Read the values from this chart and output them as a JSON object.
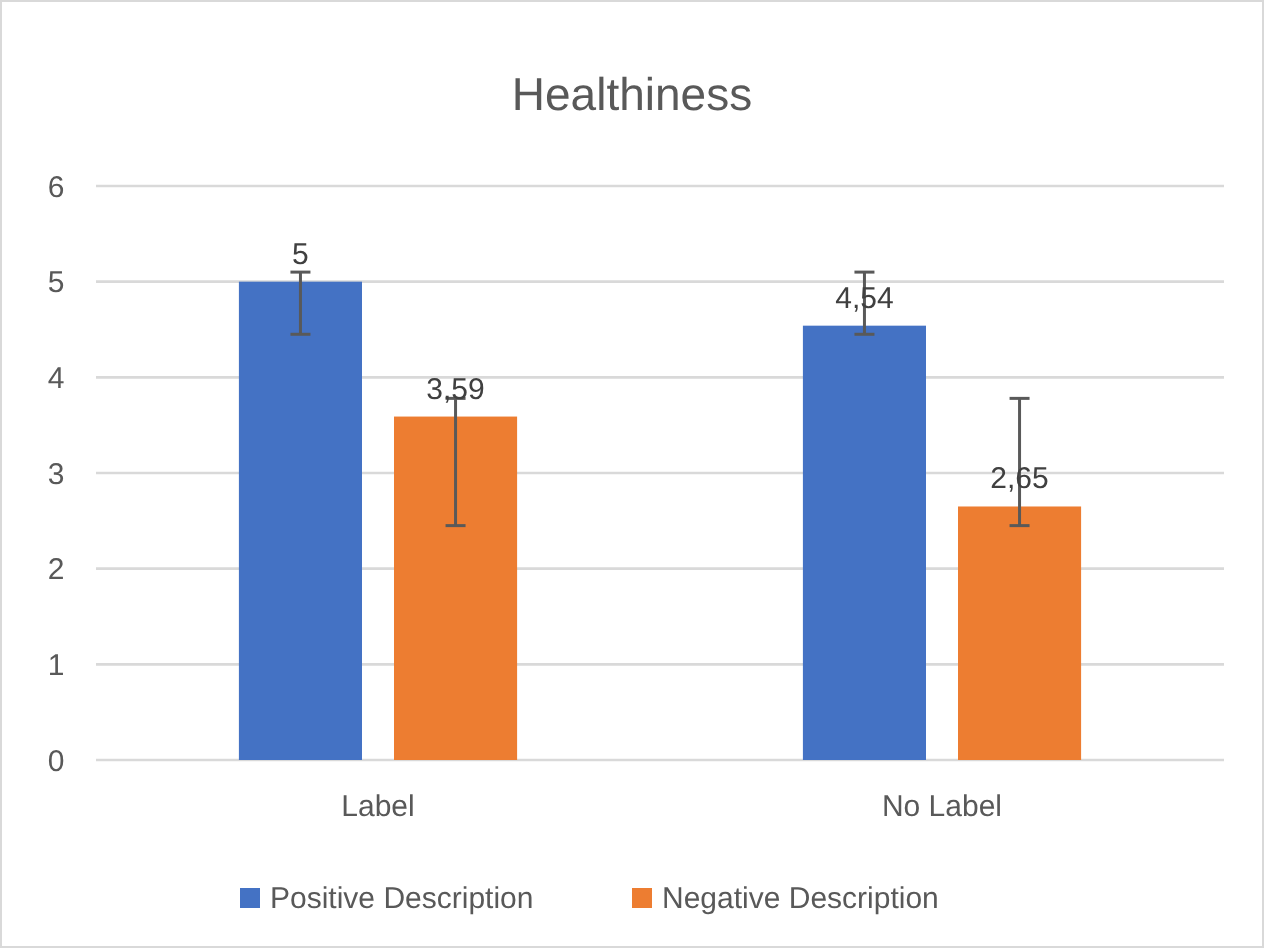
{
  "chart_data": {
    "type": "bar",
    "title": "Healthiness",
    "categories": [
      "Label",
      "No Label"
    ],
    "series": [
      {
        "name": "Positive Description",
        "color": "#4472c4",
        "values": [
          5,
          4.54
        ],
        "value_labels": [
          "5",
          "4,54"
        ],
        "errors": [
          [
            4.45,
            5.1
          ],
          [
            4.45,
            5.1
          ]
        ]
      },
      {
        "name": "Negative Description",
        "color": "#ed7d31",
        "values": [
          3.59,
          2.65
        ],
        "value_labels": [
          "3,59",
          "2,65"
        ],
        "errors": [
          [
            2.45,
            3.78
          ],
          [
            2.45,
            3.78
          ]
        ]
      }
    ],
    "ylim": [
      0,
      6
    ],
    "yticks": [
      0,
      1,
      2,
      3,
      4,
      5,
      6
    ],
    "grid": "y",
    "legend": "bottom"
  }
}
